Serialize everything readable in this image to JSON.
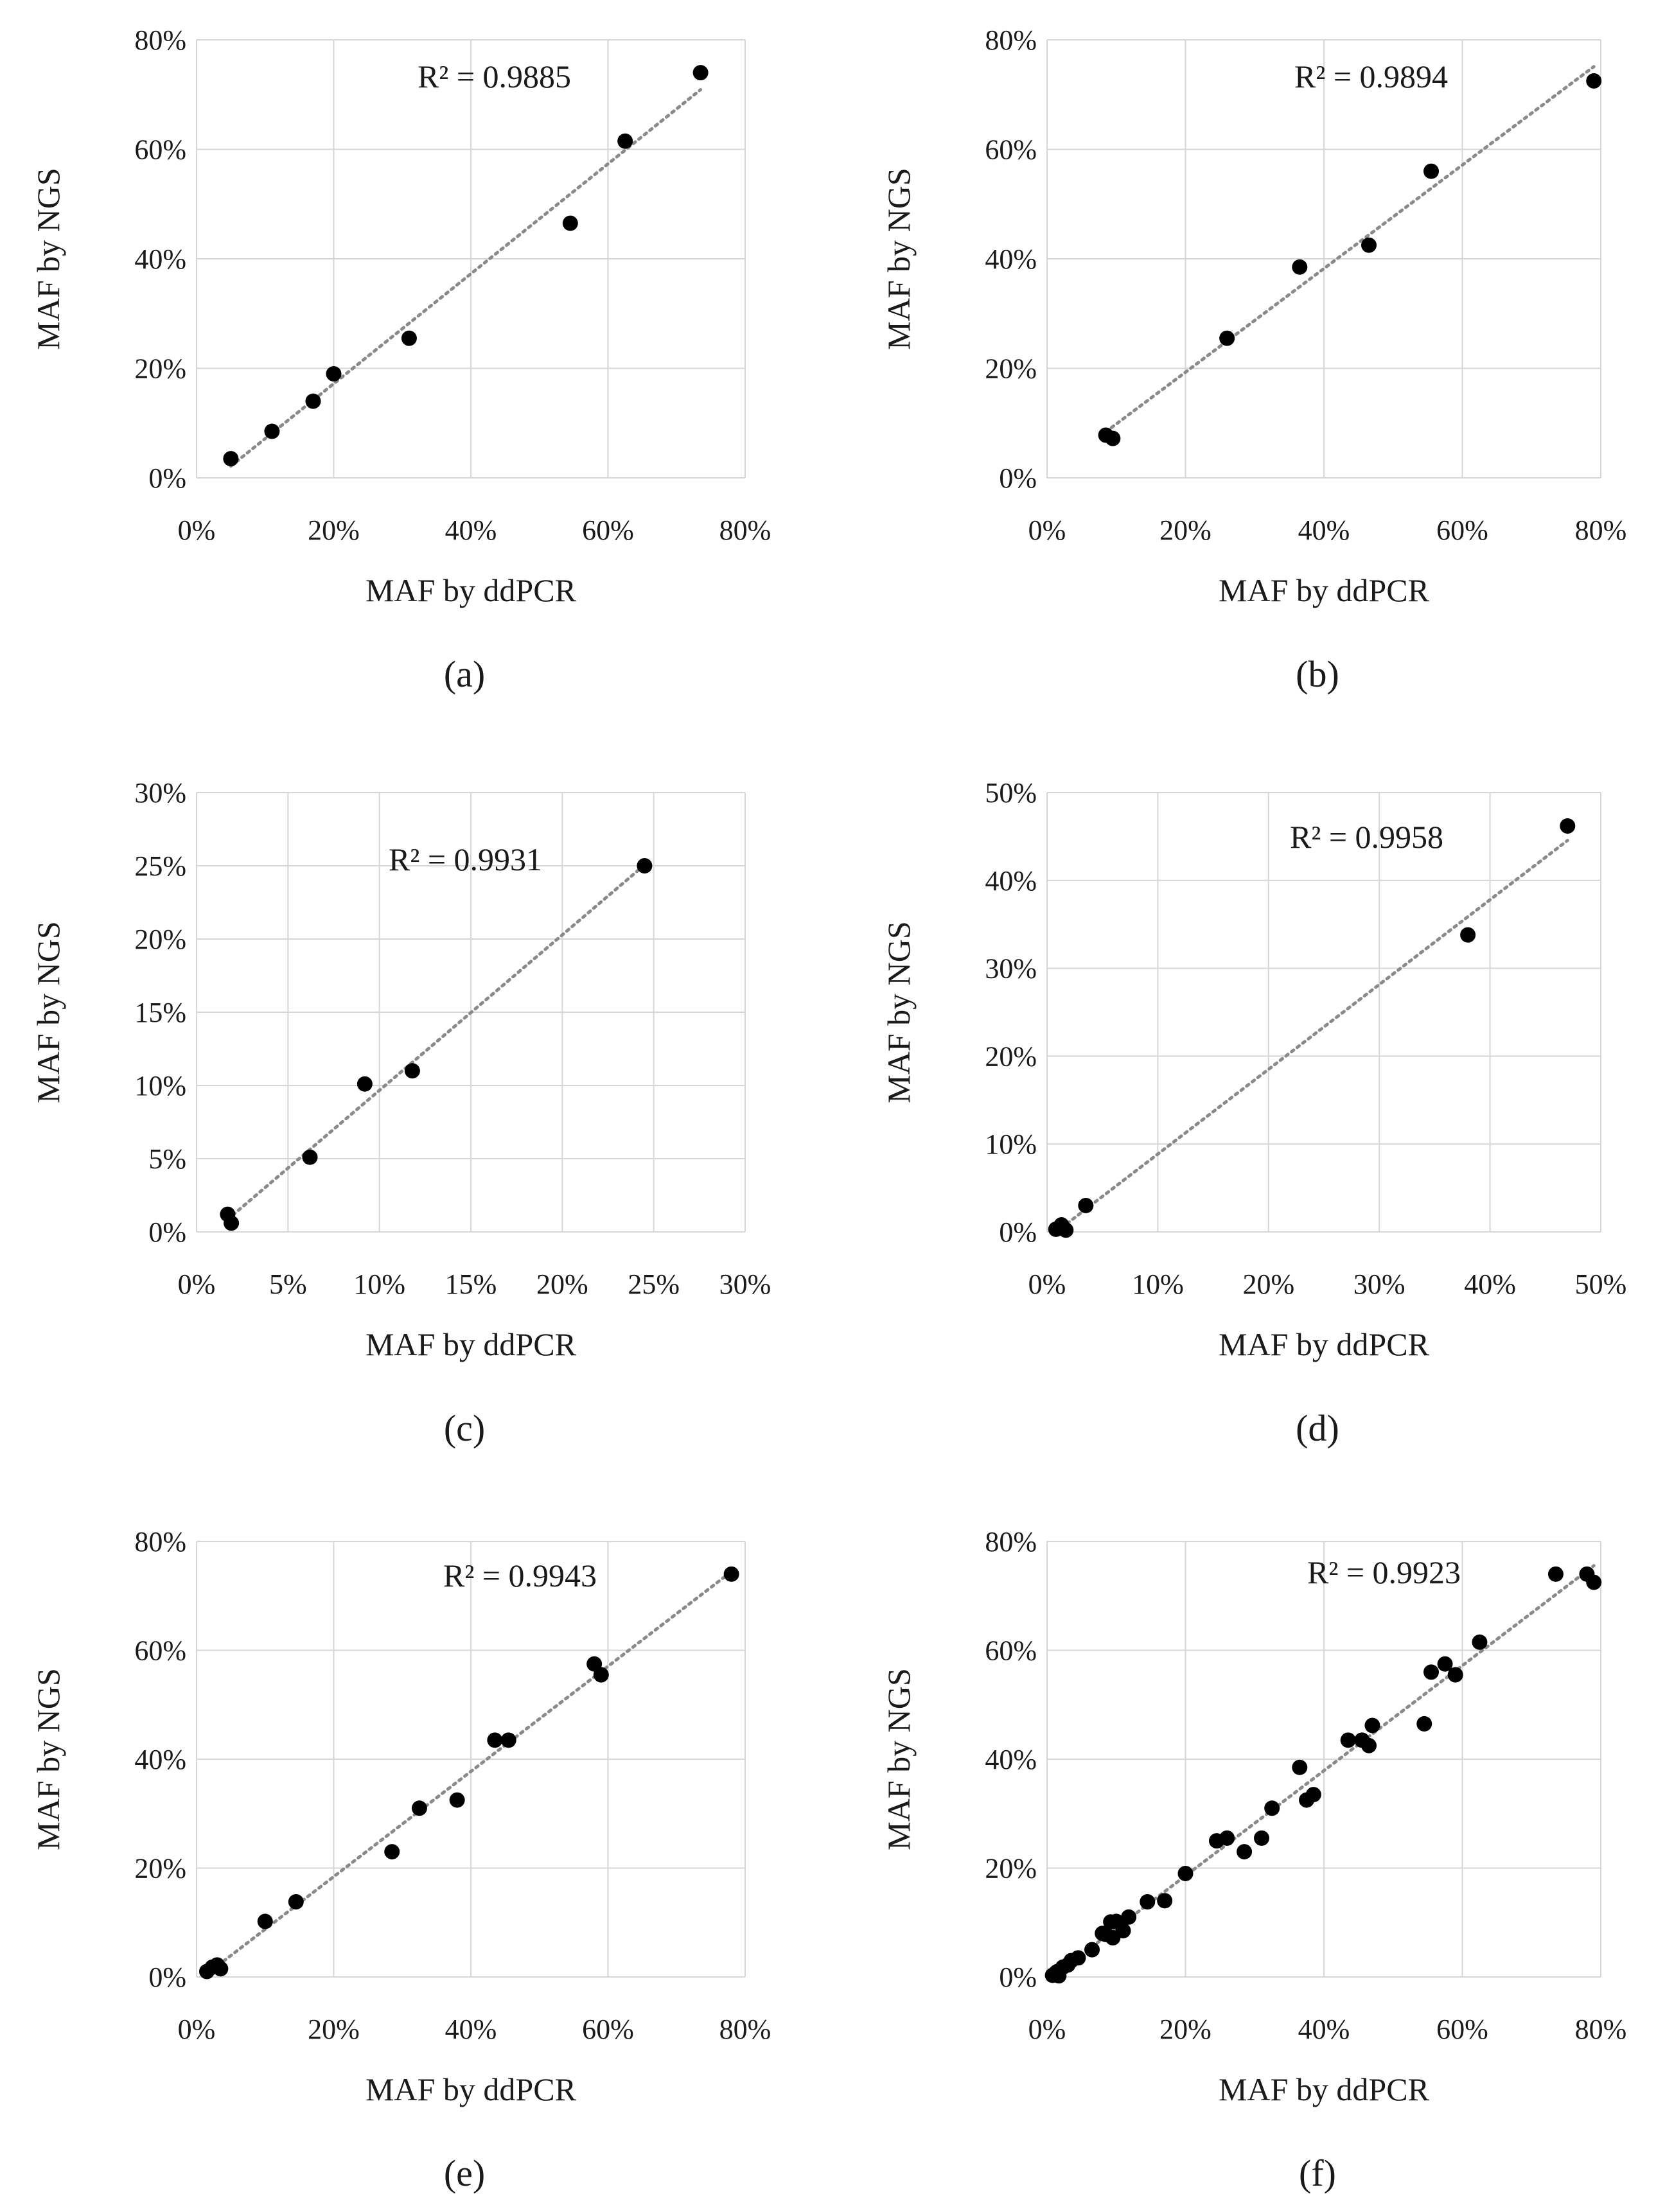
{
  "chart_data": [
    {
      "type": "scatter",
      "panel_label": "(a)",
      "r2_label": "R² = 0.9885",
      "xlabel": "MAF by ddPCR",
      "ylabel": "MAF by NGS",
      "xlim": [
        0,
        80
      ],
      "ylim": [
        0,
        80
      ],
      "xticks": [
        "0%",
        "20%",
        "40%",
        "60%",
        "80%"
      ],
      "yticks": [
        "0%",
        "20%",
        "40%",
        "60%",
        "80%"
      ],
      "tick_step": 20,
      "trendline": "linear, dotted",
      "points": [
        [
          5,
          3.5
        ],
        [
          11,
          8.5
        ],
        [
          17,
          14
        ],
        [
          20,
          19
        ],
        [
          31,
          25.5
        ],
        [
          54.5,
          46.5
        ],
        [
          62.5,
          61.5
        ],
        [
          73.5,
          74
        ]
      ]
    },
    {
      "type": "scatter",
      "panel_label": "(b)",
      "r2_label": "R² = 0.9894",
      "xlabel": "MAF by ddPCR",
      "ylabel": "MAF by NGS",
      "xlim": [
        0,
        80
      ],
      "ylim": [
        0,
        80
      ],
      "xticks": [
        "0%",
        "20%",
        "40%",
        "60%",
        "80%"
      ],
      "yticks": [
        "0%",
        "20%",
        "40%",
        "60%",
        "80%"
      ],
      "tick_step": 20,
      "trendline": "linear, dotted",
      "points": [
        [
          8.5,
          7.8
        ],
        [
          9.5,
          7.2
        ],
        [
          26,
          25.5
        ],
        [
          36.5,
          38.5
        ],
        [
          46.5,
          42.5
        ],
        [
          55.5,
          56
        ],
        [
          79,
          72.5
        ]
      ]
    },
    {
      "type": "scatter",
      "panel_label": "(c)",
      "r2_label": "R² = 0.9931",
      "xlabel": "MAF by ddPCR",
      "ylabel": "MAF by NGS",
      "xlim": [
        0,
        30
      ],
      "ylim": [
        0,
        30
      ],
      "xticks": [
        "0%",
        "5%",
        "10%",
        "15%",
        "20%",
        "25%",
        "30%"
      ],
      "yticks": [
        "0%",
        "5%",
        "10%",
        "15%",
        "20%",
        "25%",
        "30%"
      ],
      "tick_step": 5,
      "trendline": "linear, dotted",
      "points": [
        [
          1.7,
          1.2
        ],
        [
          1.9,
          0.6
        ],
        [
          6.2,
          5.1
        ],
        [
          9.2,
          10.1
        ],
        [
          11.8,
          11
        ],
        [
          24.5,
          25
        ]
      ]
    },
    {
      "type": "scatter",
      "panel_label": "(d)",
      "r2_label": "R² = 0.9958",
      "xlabel": "MAF by ddPCR",
      "ylabel": "MAF by NGS",
      "xlim": [
        0,
        50
      ],
      "ylim": [
        0,
        50
      ],
      "xticks": [
        "0%",
        "10%",
        "20%",
        "30%",
        "40%",
        "50%"
      ],
      "yticks": [
        "0%",
        "10%",
        "20%",
        "30%",
        "40%",
        "50%"
      ],
      "tick_step": 10,
      "trendline": "linear, dotted",
      "points": [
        [
          0.8,
          0.3
        ],
        [
          1.3,
          0.8
        ],
        [
          1.7,
          0.2
        ],
        [
          3.5,
          3
        ],
        [
          38,
          33.8
        ],
        [
          47,
          46.2
        ]
      ]
    },
    {
      "type": "scatter",
      "panel_label": "(e)",
      "r2_label": "R² = 0.9943",
      "xlabel": "MAF by ddPCR",
      "ylabel": "MAF by NGS",
      "xlim": [
        0,
        80
      ],
      "ylim": [
        0,
        80
      ],
      "xticks": [
        "0%",
        "20%",
        "40%",
        "60%",
        "80%"
      ],
      "yticks": [
        "0%",
        "20%",
        "40%",
        "60%",
        "80%"
      ],
      "tick_step": 20,
      "trendline": "linear, dotted",
      "points": [
        [
          1.5,
          1
        ],
        [
          2.3,
          1.8
        ],
        [
          3,
          2.2
        ],
        [
          3.5,
          1.5
        ],
        [
          10,
          10.2
        ],
        [
          14.5,
          13.8
        ],
        [
          28.5,
          23
        ],
        [
          32.5,
          31
        ],
        [
          38,
          32.5
        ],
        [
          43.5,
          43.5
        ],
        [
          45.5,
          43.5
        ],
        [
          58,
          57.5
        ],
        [
          59,
          55.5
        ],
        [
          78,
          74
        ]
      ]
    },
    {
      "type": "scatter",
      "panel_label": "(f)",
      "r2_label": "R² = 0.9923",
      "xlabel": "MAF by ddPCR",
      "ylabel": "MAF by NGS",
      "xlim": [
        0,
        80
      ],
      "ylim": [
        0,
        80
      ],
      "xticks": [
        "0%",
        "20%",
        "40%",
        "60%",
        "80%"
      ],
      "yticks": [
        "0%",
        "20%",
        "40%",
        "60%",
        "80%"
      ],
      "tick_step": 20,
      "trendline": "linear, dotted",
      "points": [
        [
          0.8,
          0.3
        ],
        [
          1.3,
          0.8
        ],
        [
          1.7,
          0.2
        ],
        [
          1.5,
          1
        ],
        [
          2.3,
          1.8
        ],
        [
          3,
          2.2
        ],
        [
          3.5,
          3
        ],
        [
          4.5,
          3.5
        ],
        [
          6.5,
          5
        ],
        [
          8,
          8
        ],
        [
          8.5,
          7.8
        ],
        [
          9.5,
          7.2
        ],
        [
          9.2,
          10.1
        ],
        [
          10,
          10.2
        ],
        [
          11,
          8.5
        ],
        [
          11.8,
          11
        ],
        [
          14.5,
          13.8
        ],
        [
          17,
          14
        ],
        [
          20,
          19
        ],
        [
          24.5,
          25
        ],
        [
          26,
          25.5
        ],
        [
          28.5,
          23
        ],
        [
          31,
          25.5
        ],
        [
          32.5,
          31
        ],
        [
          36.5,
          38.5
        ],
        [
          37.5,
          32.5
        ],
        [
          38.5,
          33.5
        ],
        [
          43.5,
          43.5
        ],
        [
          45.5,
          43.5
        ],
        [
          46.5,
          42.5
        ],
        [
          47,
          46.2
        ],
        [
          54.5,
          46.5
        ],
        [
          55.5,
          56
        ],
        [
          57.5,
          57.5
        ],
        [
          59,
          55.5
        ],
        [
          62.5,
          61.5
        ],
        [
          73.5,
          74
        ],
        [
          78,
          74
        ],
        [
          79,
          72.5
        ]
      ]
    }
  ]
}
